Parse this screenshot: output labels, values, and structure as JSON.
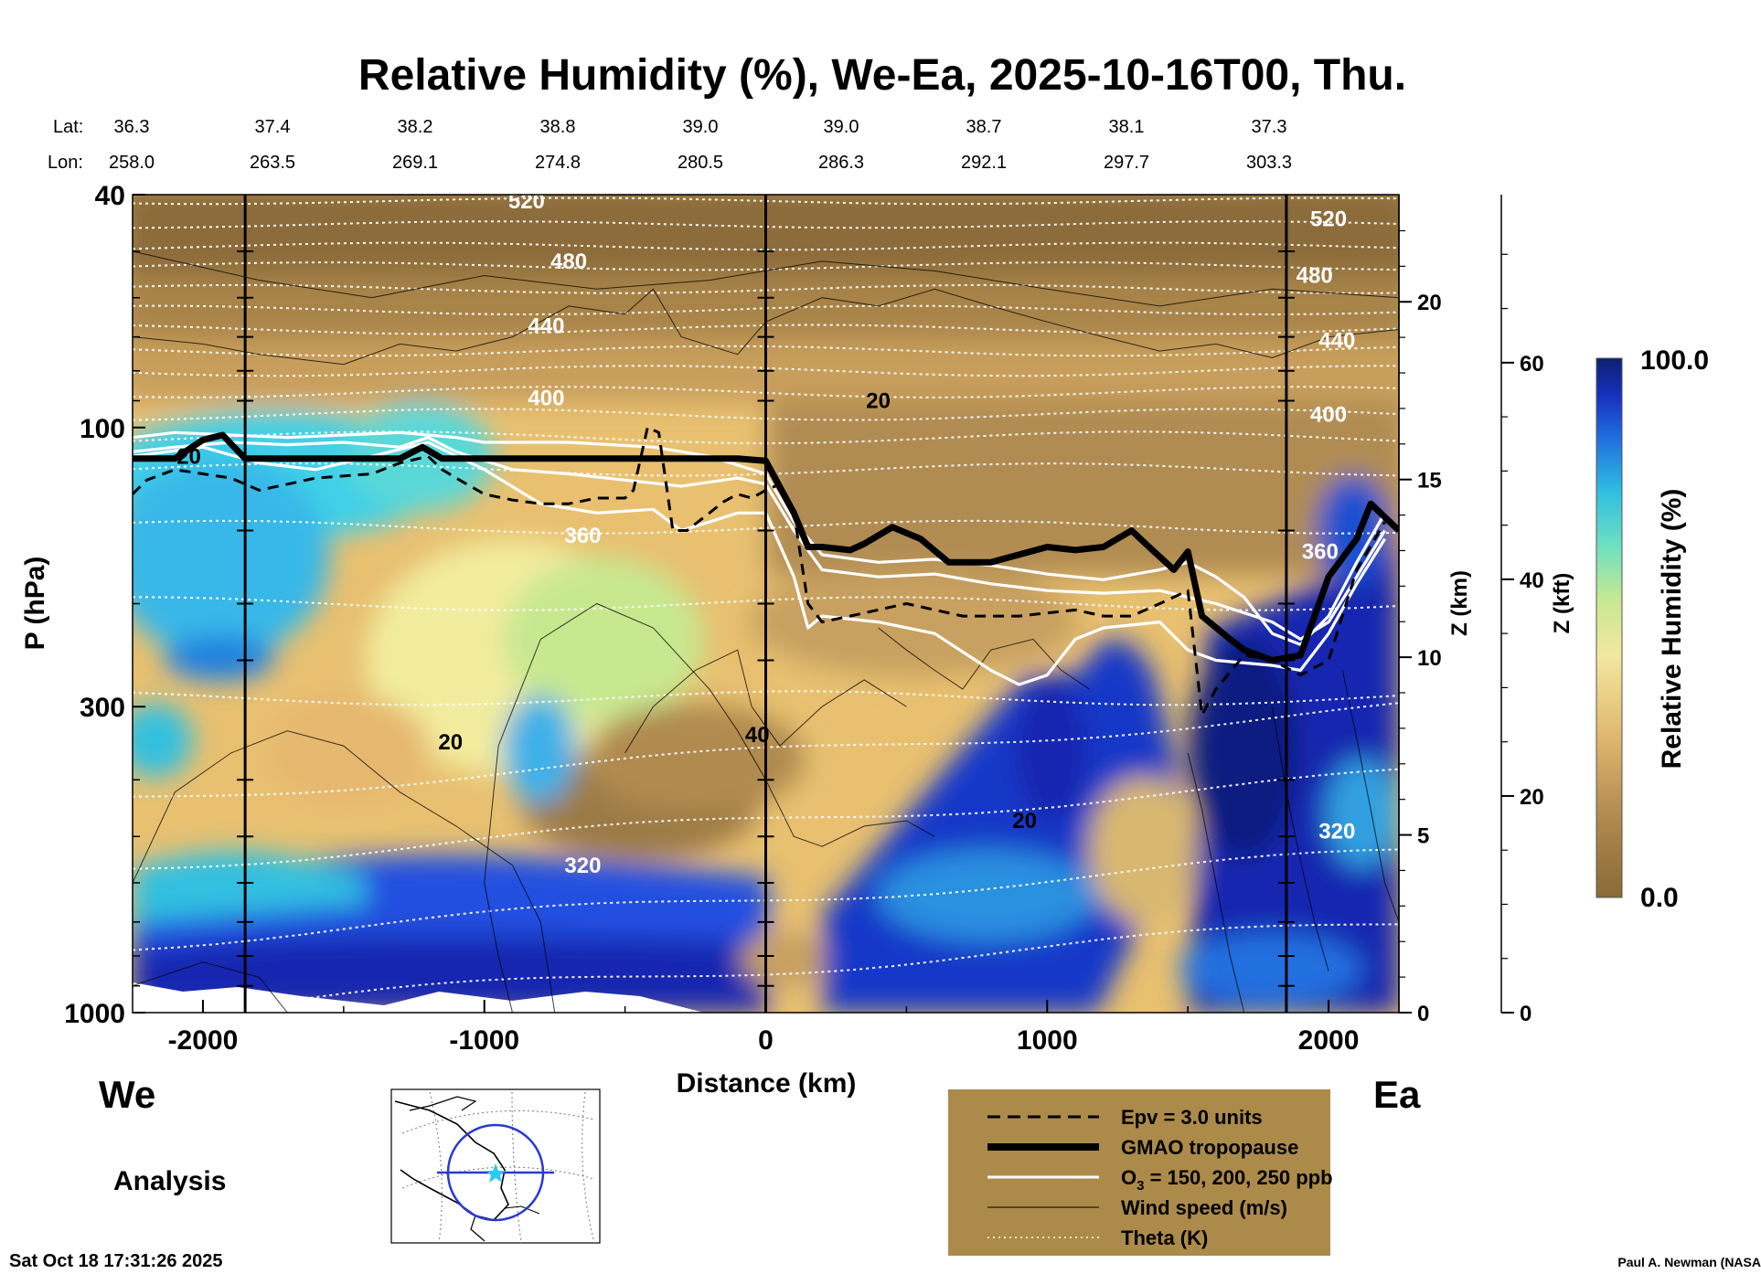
{
  "title": "Relative Humidity (%), We-Ea, 2025-10-16T00, Thu.",
  "lat_label": "Lat:",
  "lon_label": "Lon:",
  "lat_values": [
    "36.3",
    "37.4",
    "38.2",
    "38.8",
    "39.0",
    "39.0",
    "38.7",
    "38.1",
    "37.3"
  ],
  "lon_values": [
    "258.0",
    "263.5",
    "269.1",
    "274.8",
    "280.5",
    "286.3",
    "292.1",
    "297.7",
    "303.3"
  ],
  "side_labels": {
    "west": "We",
    "east": "Ea",
    "mode": "Analysis"
  },
  "timestamp": "Sat Oct 18 17:31:26 2025",
  "credit": "Paul A. Newman (NASA",
  "colors": {
    "legend_bg": "#ac8a4a",
    "tropopause": "#000000",
    "ozone": "#ffffff",
    "epv": "#000000"
  },
  "legend": [
    {
      "label": "Epv = 3.0 units",
      "style": "dashed"
    },
    {
      "label": "GMAO tropopause",
      "style": "thick"
    },
    {
      "label": "O",
      "sub": "3",
      "tail": " = 150, 200, 250 ppb",
      "style": "white"
    },
    {
      "label": "Wind speed (m/s)",
      "style": "thin"
    },
    {
      "label": "Theta (K)",
      "style": "dotted"
    }
  ],
  "chart_data": {
    "type": "heatmap",
    "xlabel": "Distance (km)",
    "ylabel": "P (hPa)",
    "xlim": [
      -2250,
      2250
    ],
    "ylim": [
      1000,
      40
    ],
    "yscale": "log",
    "xticks": [
      -2000,
      -1000,
      0,
      1000,
      2000
    ],
    "xtick_labels": [
      "-2000",
      "-1000",
      "0",
      "1000",
      "2000"
    ],
    "yticks": [
      40,
      100,
      300,
      1000
    ],
    "ytick_labels": [
      "40",
      "100",
      "300",
      "1000"
    ],
    "z_km_label": "Z (km)",
    "z_km_ticks": [
      0,
      5,
      10,
      15,
      20
    ],
    "z_km_tick_labels": [
      "0",
      "5",
      "10",
      "15",
      "20"
    ],
    "z_kft_label": "Z (kft)",
    "z_kft_ticks": [
      0,
      20,
      40,
      60
    ],
    "z_kft_tick_labels": [
      "0",
      "20",
      "40",
      "60"
    ],
    "vertical_lines_km": [
      -1850,
      0,
      1850
    ],
    "colorbar": {
      "label": "Relative Humidity (%)",
      "min": 0.0,
      "max": 100.0,
      "min_label": "0.0",
      "max_label": "100.0"
    },
    "theta_labels": [
      {
        "text": "520",
        "x": -850,
        "p": 41
      },
      {
        "text": "480",
        "x": -700,
        "p": 52
      },
      {
        "text": "440",
        "x": -780,
        "p": 67
      },
      {
        "text": "400",
        "x": -780,
        "p": 89
      },
      {
        "text": "360",
        "x": -650,
        "p": 153
      },
      {
        "text": "320",
        "x": -650,
        "p": 560
      },
      {
        "text": "520",
        "x": 2000,
        "p": 44
      },
      {
        "text": "480",
        "x": 1950,
        "p": 55
      },
      {
        "text": "440",
        "x": 2030,
        "p": 71
      },
      {
        "text": "400",
        "x": 2000,
        "p": 95
      },
      {
        "text": "360",
        "x": 1970,
        "p": 163
      },
      {
        "text": "320",
        "x": 2030,
        "p": 490
      }
    ],
    "wind_labels": [
      {
        "text": "20",
        "x": 400,
        "p": 90
      },
      {
        "text": "20",
        "x": -1120,
        "p": 345
      },
      {
        "text": "40",
        "x": -30,
        "p": 335
      },
      {
        "text": "20",
        "x": 920,
        "p": 470
      },
      {
        "text": "20",
        "x": -2050,
        "p": 112
      }
    ],
    "series": [
      {
        "name": "GMAO tropopause",
        "x": [
          -2250,
          -2100,
          -2000,
          -1930,
          -1850,
          -1750,
          -1500,
          -1300,
          -1220,
          -1150,
          -1000,
          -500,
          -100,
          0,
          100,
          150,
          200,
          300,
          350,
          450,
          550,
          650,
          800,
          1000,
          1100,
          1200,
          1300,
          1350,
          1450,
          1500,
          1550,
          1650,
          1700,
          1800,
          1900,
          2000,
          2100,
          2150,
          2250
        ],
        "y": [
          113,
          113,
          105,
          103,
          113,
          113,
          113,
          113,
          108,
          113,
          113,
          113,
          113,
          114,
          140,
          160,
          160,
          162,
          158,
          148,
          155,
          170,
          170,
          160,
          162,
          160,
          150,
          158,
          175,
          163,
          210,
          230,
          240,
          250,
          245,
          180,
          155,
          135,
          150
        ]
      },
      {
        "name": "Epv = 3.0 units",
        "x": [
          -2250,
          -2200,
          -2100,
          -2000,
          -1900,
          -1800,
          -1700,
          -1600,
          -1400,
          -1300,
          -1200,
          -1150,
          -1100,
          -1000,
          -900,
          -800,
          -700,
          -600,
          -500,
          -470,
          -420,
          -380,
          -330,
          -280,
          -200,
          -150,
          -100,
          -50,
          0,
          50,
          100,
          150,
          200,
          300,
          500,
          700,
          900,
          1100,
          1200,
          1300,
          1400,
          1500,
          1550,
          1600,
          1700,
          1800,
          1900,
          2000,
          2100,
          2200
        ],
        "y": [
          130,
          123,
          118,
          120,
          122,
          128,
          125,
          122,
          120,
          115,
          112,
          118,
          122,
          130,
          133,
          135,
          135,
          132,
          132,
          128,
          100,
          102,
          150,
          150,
          140,
          134,
          130,
          132,
          128,
          125,
          140,
          200,
          215,
          210,
          200,
          210,
          210,
          205,
          210,
          210,
          200,
          190,
          310,
          280,
          245,
          250,
          265,
          250,
          175,
          145
        ]
      },
      {
        "name": "O3 = 150 ppb",
        "x": [
          -2250,
          -2100,
          -1900,
          -1700,
          -1500,
          -1300,
          -1100,
          -1000,
          -700,
          -400,
          -200,
          0,
          100,
          200,
          400,
          600,
          800,
          1000,
          1200,
          1400,
          1500,
          1600,
          1700,
          1800,
          1900,
          2000,
          2100,
          2200
        ],
        "y": [
          104,
          102,
          103,
          104,
          103,
          102,
          104,
          106,
          106,
          108,
          112,
          120,
          145,
          165,
          170,
          168,
          172,
          178,
          182,
          175,
          170,
          180,
          195,
          225,
          235,
          210,
          170,
          140
        ]
      },
      {
        "name": "O3 = 200 ppb",
        "x": [
          -2250,
          -2100,
          -1900,
          -1700,
          -1500,
          -1300,
          -1200,
          -1100,
          -900,
          -700,
          -500,
          -300,
          -100,
          0,
          100,
          200,
          400,
          600,
          800,
          1000,
          1200,
          1400,
          1600,
          1800,
          1900,
          2000,
          2100,
          2200
        ],
        "y": [
          110,
          108,
          106,
          107,
          106,
          108,
          104,
          110,
          118,
          120,
          123,
          126,
          122,
          125,
          150,
          175,
          180,
          178,
          185,
          190,
          192,
          190,
          200,
          215,
          230,
          215,
          180,
          150
        ]
      },
      {
        "name": "O3 = 250 ppb",
        "x": [
          -2250,
          -2000,
          -1800,
          -1600,
          -1400,
          -1200,
          -1000,
          -800,
          -600,
          -400,
          -300,
          -200,
          -100,
          0,
          100,
          150,
          200,
          400,
          600,
          800,
          900,
          1000,
          1100,
          1200,
          1400,
          1500,
          1600,
          1800,
          1900,
          2000,
          2100,
          2200
        ],
        "y": [
          112,
          108,
          115,
          118,
          112,
          106,
          118,
          135,
          140,
          138,
          150,
          145,
          140,
          140,
          180,
          220,
          210,
          215,
          225,
          260,
          275,
          265,
          230,
          220,
          215,
          240,
          250,
          255,
          260,
          225,
          185,
          155
        ]
      }
    ]
  }
}
